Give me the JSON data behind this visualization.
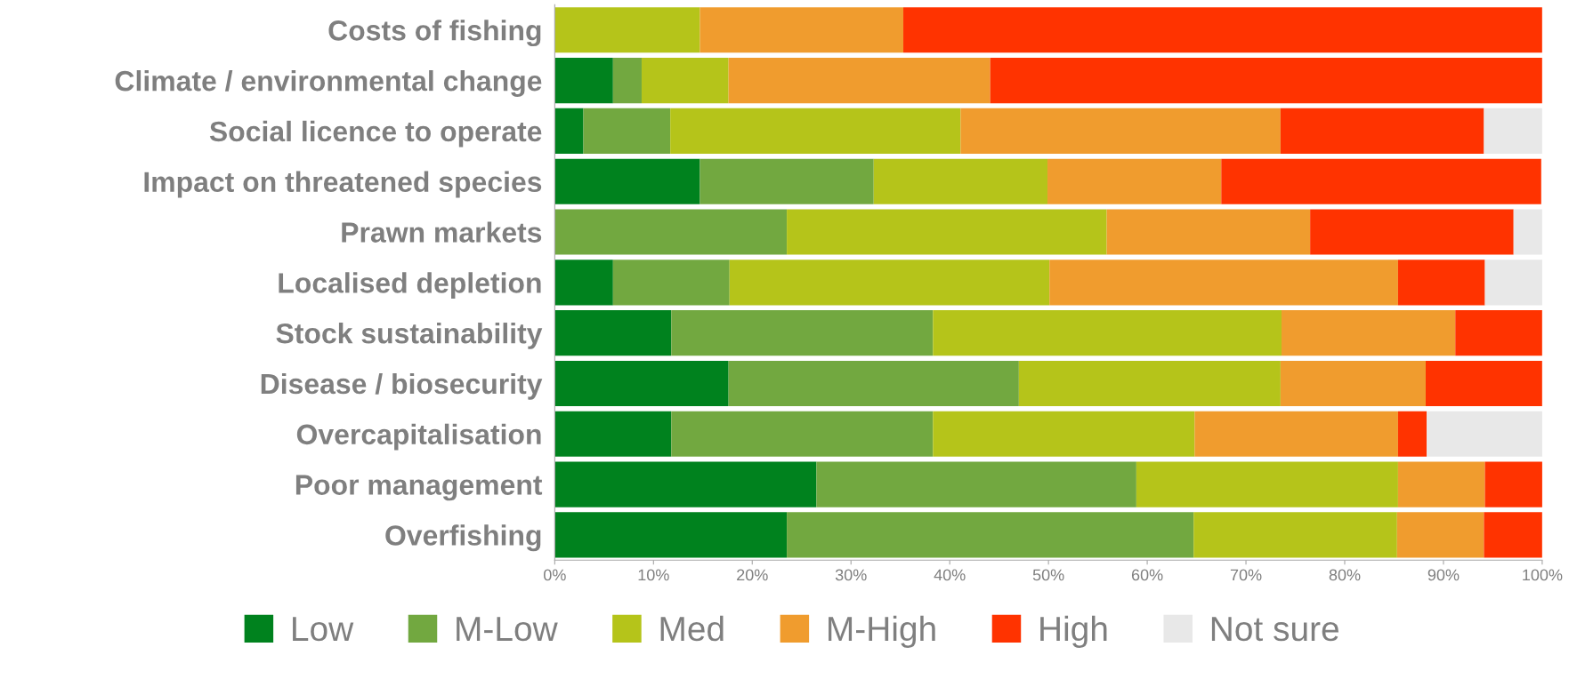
{
  "chart_data": {
    "type": "bar",
    "orientation": "horizontal",
    "stacked": true,
    "categories": [
      "Costs of fishing",
      "Climate / environmental change",
      "Social licence to operate",
      "Impact on threatened species",
      "Prawn markets",
      "Localised depletion",
      "Stock sustainability",
      "Disease / biosecurity",
      "Overcapitalisation",
      "Poor management",
      "Overfishing"
    ],
    "series": [
      {
        "name": "Low",
        "color": "#00821e",
        "values": [
          0,
          5.9,
          2.9,
          14.7,
          0,
          5.9,
          11.8,
          17.6,
          11.8,
          26.5,
          23.5
        ]
      },
      {
        "name": "M-Low",
        "color": "#72a840",
        "values": [
          0,
          2.9,
          8.8,
          17.6,
          23.5,
          11.8,
          26.5,
          29.4,
          26.5,
          32.4,
          41.2
        ]
      },
      {
        "name": "Med",
        "color": "#b5c41a",
        "values": [
          14.7,
          8.8,
          29.4,
          17.6,
          32.4,
          32.4,
          35.3,
          26.5,
          26.5,
          26.5,
          20.6
        ]
      },
      {
        "name": "M-High",
        "color": "#f09c2e",
        "values": [
          20.6,
          26.5,
          32.4,
          17.6,
          20.6,
          35.3,
          17.6,
          14.7,
          20.6,
          8.8,
          8.8
        ]
      },
      {
        "name": "High",
        "color": "#ff3300",
        "values": [
          64.7,
          55.9,
          20.6,
          32.4,
          20.6,
          8.8,
          8.8,
          11.8,
          2.9,
          5.9,
          5.9
        ]
      },
      {
        "name": "Not sure",
        "color": "#e8e8e8",
        "values": [
          0,
          0,
          5.9,
          0,
          2.9,
          5.9,
          0,
          0,
          11.8,
          0,
          0
        ]
      }
    ],
    "xlim": [
      0,
      100
    ],
    "xticks": [
      {
        "value": 0,
        "label": "0%"
      },
      {
        "value": 10,
        "label": "10%"
      },
      {
        "value": 20,
        "label": "20%"
      },
      {
        "value": 30,
        "label": "30%"
      },
      {
        "value": 40,
        "label": "40%"
      },
      {
        "value": 50,
        "label": "50%"
      },
      {
        "value": 60,
        "label": "60%"
      },
      {
        "value": 70,
        "label": "70%"
      },
      {
        "value": 80,
        "label": "80%"
      },
      {
        "value": 90,
        "label": "90%"
      },
      {
        "value": 100,
        "label": "100%"
      }
    ],
    "grid": false,
    "legend": "bottom"
  }
}
